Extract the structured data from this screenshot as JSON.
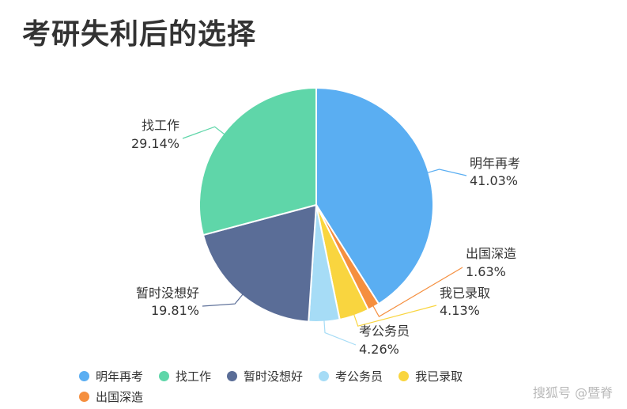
{
  "chart_data": {
    "type": "pie",
    "title": "考研失利后的选择",
    "slices": [
      {
        "name": "明年再考",
        "value": 41.03,
        "label": "41.03%",
        "color": "#5aaef2"
      },
      {
        "name": "出国深造",
        "value": 1.63,
        "label": "1.63%",
        "color": "#f58f3f"
      },
      {
        "name": "我已录取",
        "value": 4.13,
        "label": "4.13%",
        "color": "#f9d53f"
      },
      {
        "name": "考公务员",
        "value": 4.26,
        "label": "4.26%",
        "color": "#a6dcf6"
      },
      {
        "name": "暂时没想好",
        "value": 19.81,
        "label": "19.81%",
        "color": "#5a6d97"
      },
      {
        "name": "找工作",
        "value": 29.14,
        "label": "29.14%",
        "color": "#5fd6a9"
      }
    ],
    "legend": {
      "placement": "bottom",
      "order": [
        "明年再考",
        "找工作",
        "暂时没想好",
        "考公务员",
        "我已录取",
        "出国深造"
      ]
    },
    "start_angle_deg": 0,
    "direction": "clockwise"
  },
  "watermark": "搜狐号 @暨脊"
}
